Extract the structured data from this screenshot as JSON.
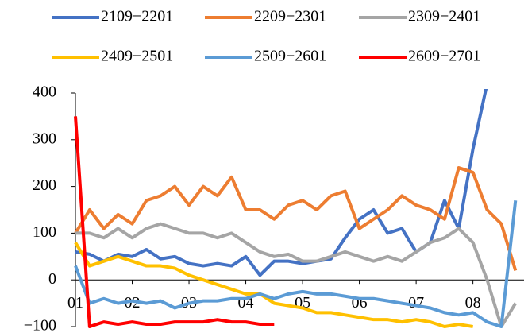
{
  "chart_data": {
    "type": "line",
    "x": [
      1,
      1.25,
      1.5,
      1.75,
      2,
      2.25,
      2.5,
      2.75,
      3,
      3.25,
      3.5,
      3.75,
      4,
      4.25,
      4.5,
      4.75,
      5,
      5.25,
      5.5,
      5.75,
      6,
      6.25,
      6.5,
      6.75,
      7,
      7.25,
      7.5,
      7.75,
      8,
      8.25,
      8.5,
      8.75
    ],
    "xlim": [
      1,
      8.9
    ],
    "xticks": [
      {
        "value": 1,
        "label": "01"
      },
      {
        "value": 2,
        "label": "02"
      },
      {
        "value": 3,
        "label": "03"
      },
      {
        "value": 4,
        "label": "04"
      },
      {
        "value": 5,
        "label": "05"
      },
      {
        "value": 6,
        "label": "06"
      },
      {
        "value": 7,
        "label": "07"
      },
      {
        "value": 8,
        "label": "08"
      }
    ],
    "ylim": [
      -100,
      400
    ],
    "yticks": [
      {
        "value": -100,
        "label": "−100"
      },
      0,
      100,
      200,
      300,
      400
    ],
    "legend": "top",
    "series": [
      {
        "name": "2109−2201",
        "color": "#4472c4",
        "values": [
          60,
          55,
          40,
          55,
          50,
          65,
          45,
          50,
          35,
          30,
          35,
          30,
          50,
          10,
          40,
          40,
          35,
          40,
          45,
          90,
          130,
          150,
          100,
          110,
          60,
          80,
          170,
          110,
          280,
          420,
          null,
          null
        ]
      },
      {
        "name": "2209−2301",
        "color": "#ed7d31",
        "values": [
          100,
          150,
          110,
          140,
          120,
          170,
          180,
          200,
          160,
          200,
          180,
          220,
          150,
          150,
          130,
          160,
          170,
          150,
          180,
          190,
          110,
          130,
          150,
          180,
          160,
          150,
          130,
          240,
          230,
          150,
          120,
          20
        ]
      },
      {
        "name": "2309−2401",
        "color": "#a5a5a5",
        "values": [
          100,
          100,
          90,
          110,
          90,
          110,
          120,
          110,
          100,
          100,
          90,
          100,
          80,
          60,
          50,
          55,
          40,
          40,
          50,
          60,
          50,
          40,
          50,
          40,
          60,
          80,
          90,
          110,
          80,
          0,
          -100,
          -50
        ]
      },
      {
        "name": "2409−2501",
        "color": "#ffc000",
        "values": [
          80,
          30,
          40,
          50,
          40,
          30,
          30,
          25,
          10,
          0,
          -10,
          -20,
          -30,
          -30,
          -50,
          -55,
          -60,
          -70,
          -70,
          -75,
          -80,
          -85,
          -85,
          -90,
          -85,
          -90,
          -100,
          -95,
          -100,
          null,
          null,
          null
        ]
      },
      {
        "name": "2509−2601",
        "color": "#5b9bd5",
        "values": [
          30,
          -50,
          -40,
          -50,
          -45,
          -50,
          -45,
          -60,
          -50,
          -45,
          -45,
          -40,
          -40,
          -30,
          -40,
          -30,
          -25,
          -30,
          -30,
          -35,
          -40,
          -40,
          -45,
          -50,
          -55,
          -60,
          -70,
          -75,
          -70,
          -90,
          -100,
          170
        ]
      },
      {
        "name": "2609−2701",
        "color": "#ff0000",
        "values": [
          350,
          -100,
          -90,
          -95,
          -90,
          -95,
          -95,
          -90,
          -90,
          -90,
          -85,
          -90,
          -90,
          -95,
          -95,
          null,
          null,
          null,
          null,
          null,
          null,
          null,
          null,
          null,
          null,
          null,
          null,
          null,
          null,
          null,
          null,
          null
        ]
      }
    ]
  }
}
